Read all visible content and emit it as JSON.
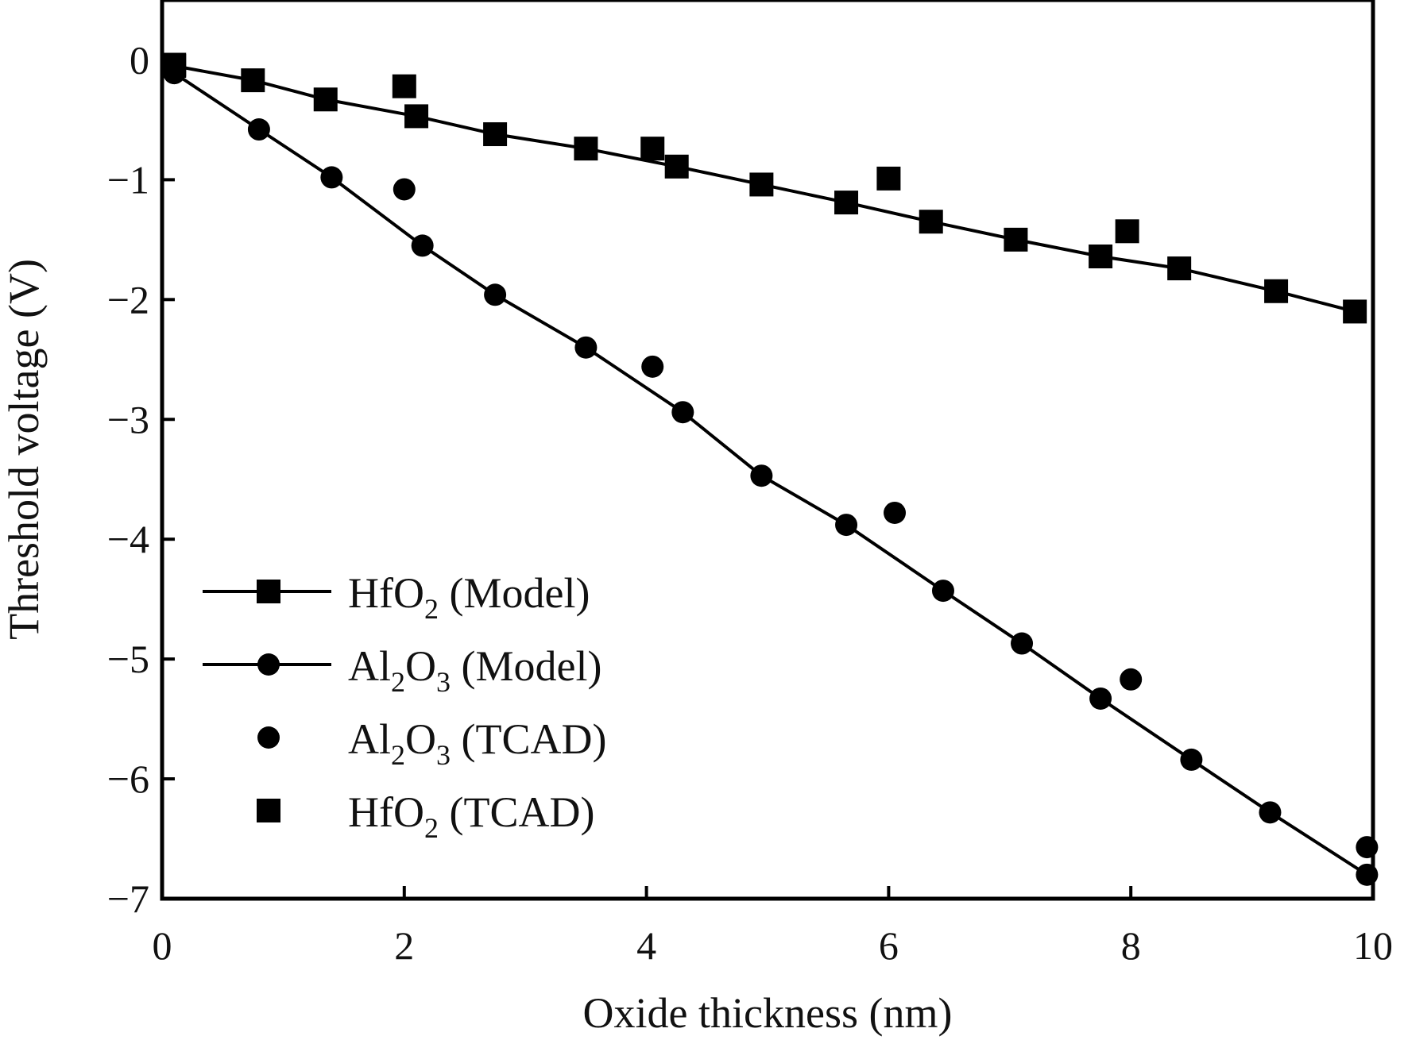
{
  "chart_data": {
    "type": "scatter",
    "title": "",
    "xlabel": "Oxide thickness (nm)",
    "ylabel": "Threshold voltage (V)",
    "xlim": [
      0,
      10
    ],
    "ylim": [
      -7,
      0.5
    ],
    "xticks": [
      0,
      2,
      4,
      6,
      8,
      10
    ],
    "xtick_labels": [
      "0",
      "2",
      "4",
      "6",
      "8",
      "10"
    ],
    "yticks": [
      0,
      -1,
      -2,
      -3,
      -4,
      -5,
      -6,
      -7
    ],
    "ytick_labels": [
      "0",
      "−1",
      "−2",
      "−3",
      "−4",
      "−5",
      "−6",
      "−7"
    ],
    "grid": false,
    "legend_position": "bottom-left",
    "series": [
      {
        "name": "HfO2 (Model)",
        "legend_parts": [
          "HfO",
          "2",
          " (Model)"
        ],
        "style": "line+square",
        "x": [
          0.1,
          0.75,
          1.35,
          2.1,
          2.75,
          3.5,
          4.25,
          4.95,
          5.65,
          6.35,
          7.05,
          7.75,
          8.4,
          9.2,
          9.85
        ],
        "y": [
          -0.05,
          -0.17,
          -0.33,
          -0.47,
          -0.62,
          -0.74,
          -0.89,
          -1.04,
          -1.19,
          -1.35,
          -1.5,
          -1.64,
          -1.74,
          -1.93,
          -2.1
        ]
      },
      {
        "name": "Al2O3 (Model)",
        "legend_parts": [
          "Al",
          "2",
          "O",
          "3",
          " (Model)"
        ],
        "style": "line+circle",
        "x": [
          0.1,
          0.8,
          1.4,
          2.15,
          2.75,
          3.5,
          4.3,
          4.95,
          5.65,
          6.45,
          7.1,
          7.75,
          8.5,
          9.15,
          9.95
        ],
        "y": [
          -0.11,
          -0.58,
          -0.98,
          -1.55,
          -1.96,
          -2.4,
          -2.94,
          -3.47,
          -3.88,
          -4.43,
          -4.87,
          -5.33,
          -5.84,
          -6.28,
          -6.8
        ]
      },
      {
        "name": "Al2O3 (TCAD)",
        "legend_parts": [
          "Al",
          "2",
          "O",
          "3",
          " (TCAD)"
        ],
        "style": "circle",
        "x": [
          0.1,
          2.0,
          4.05,
          6.05,
          8.0,
          9.95
        ],
        "y": [
          -0.11,
          -1.08,
          -2.56,
          -3.78,
          -5.17,
          -6.57
        ]
      },
      {
        "name": "HfO2 (TCAD)",
        "legend_parts": [
          "HfO",
          "2",
          " (TCAD)"
        ],
        "style": "square",
        "x": [
          0.1,
          2.0,
          4.05,
          6.0,
          7.97
        ],
        "y": [
          -0.04,
          -0.22,
          -0.74,
          -0.99,
          -1.43
        ]
      }
    ]
  }
}
